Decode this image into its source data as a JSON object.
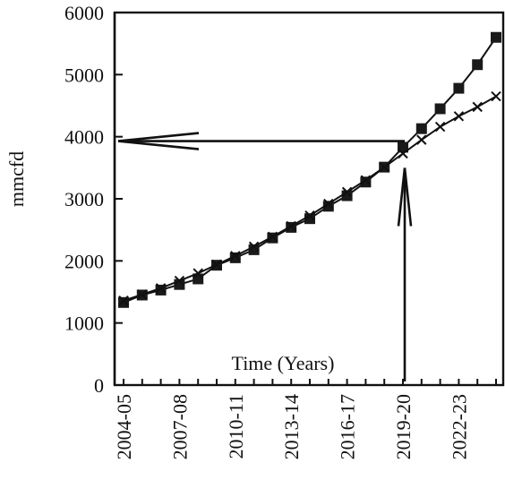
{
  "chart_data": {
    "type": "line",
    "title": "",
    "xlabel": "Time (Years)",
    "ylabel": "mmcfd",
    "ylim": [
      0,
      6000
    ],
    "yticks": [
      0,
      1000,
      2000,
      3000,
      4000,
      5000,
      6000
    ],
    "x_tick_labels": [
      "2004-05",
      "2007-08",
      "2010-11",
      "2013-14",
      "2016-17",
      "2019-20",
      "2022-23"
    ],
    "categories": [
      "2004-05",
      "2005-06",
      "2006-07",
      "2007-08",
      "2008-09",
      "2009-10",
      "2010-11",
      "2011-12",
      "2012-13",
      "2013-14",
      "2014-15",
      "2015-16",
      "2016-17",
      "2017-18",
      "2018-19",
      "2019-20",
      "2020-21",
      "2021-22",
      "2022-23",
      "2023-24",
      "2024-25"
    ],
    "series": [
      {
        "marker": "square",
        "values": [
          1330,
          1450,
          1530,
          1620,
          1710,
          1930,
          2050,
          2180,
          2370,
          2540,
          2680,
          2880,
          3050,
          3270,
          3510,
          3830,
          4130,
          4450,
          4780,
          5160,
          5600
        ]
      },
      {
        "marker": "cross",
        "values": [
          1360,
          1460,
          1560,
          1680,
          1800,
          1940,
          2080,
          2230,
          2390,
          2560,
          2730,
          2920,
          3110,
          3300,
          3510,
          3730,
          3950,
          4160,
          4330,
          4480,
          4650
        ]
      }
    ],
    "annotations": {
      "horizontal_arrow_value": 3930,
      "vertical_arrow_category": "2019-20"
    },
    "grid": false,
    "legend": "none"
  }
}
